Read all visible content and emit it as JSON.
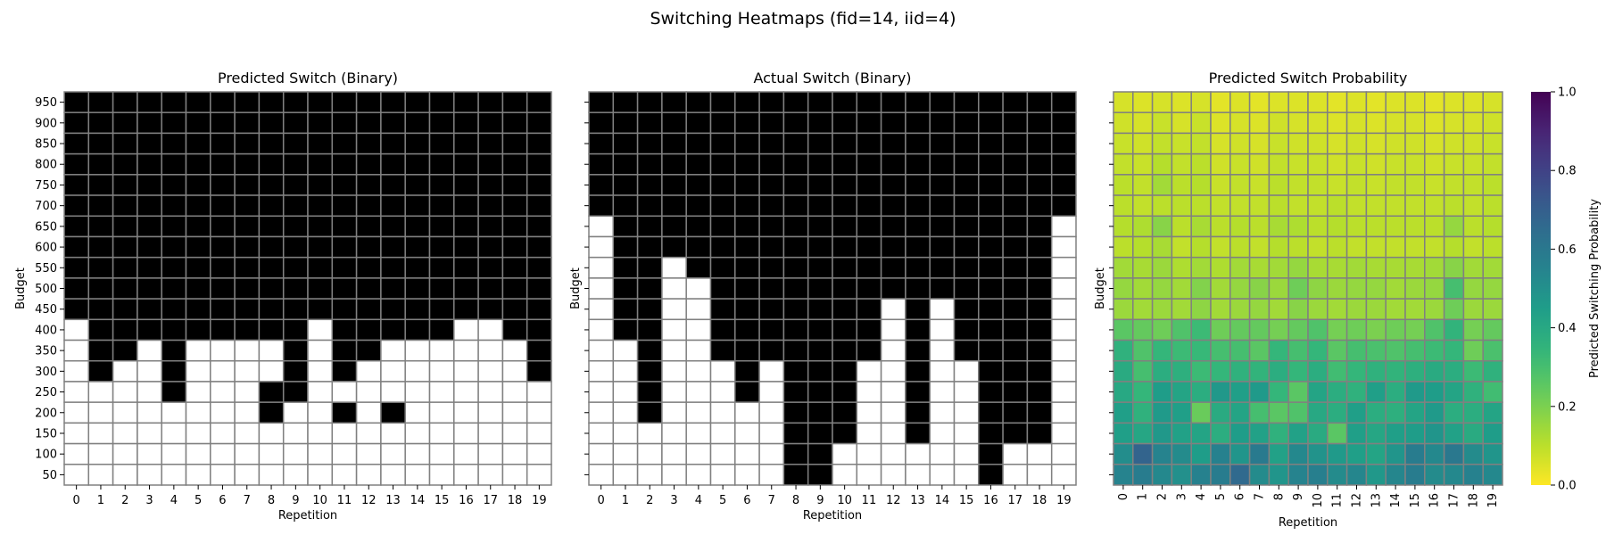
{
  "figure_title": "Switching Heatmaps (fid=14, iid=4)",
  "colorbar": {
    "label": "Predicted Switching Probability",
    "ticks": [
      "0.0",
      "0.2",
      "0.4",
      "0.6",
      "0.8",
      "1.0"
    ],
    "colormap": "viridis_r"
  },
  "chart_data": [
    {
      "type": "heatmap",
      "title": "Predicted Switch (Binary)",
      "xlabel": "Repetition",
      "ylabel": "Budget",
      "x": [
        0,
        1,
        2,
        3,
        4,
        5,
        6,
        7,
        8,
        9,
        10,
        11,
        12,
        13,
        14,
        15,
        16,
        17,
        18,
        19
      ],
      "y": [
        950,
        900,
        850,
        800,
        750,
        700,
        650,
        600,
        550,
        500,
        450,
        400,
        350,
        300,
        250,
        200,
        150,
        100,
        50
      ],
      "values": [
        [
          1,
          1,
          1,
          1,
          1,
          1,
          1,
          1,
          1,
          1,
          1,
          1,
          1,
          1,
          1,
          1,
          1,
          1,
          1,
          1
        ],
        [
          1,
          1,
          1,
          1,
          1,
          1,
          1,
          1,
          1,
          1,
          1,
          1,
          1,
          1,
          1,
          1,
          1,
          1,
          1,
          1
        ],
        [
          1,
          1,
          1,
          1,
          1,
          1,
          1,
          1,
          1,
          1,
          1,
          1,
          1,
          1,
          1,
          1,
          1,
          1,
          1,
          1
        ],
        [
          1,
          1,
          1,
          1,
          1,
          1,
          1,
          1,
          1,
          1,
          1,
          1,
          1,
          1,
          1,
          1,
          1,
          1,
          1,
          1
        ],
        [
          1,
          1,
          1,
          1,
          1,
          1,
          1,
          1,
          1,
          1,
          1,
          1,
          1,
          1,
          1,
          1,
          1,
          1,
          1,
          1
        ],
        [
          1,
          1,
          1,
          1,
          1,
          1,
          1,
          1,
          1,
          1,
          1,
          1,
          1,
          1,
          1,
          1,
          1,
          1,
          1,
          1
        ],
        [
          1,
          1,
          1,
          1,
          1,
          1,
          1,
          1,
          1,
          1,
          1,
          1,
          1,
          1,
          1,
          1,
          1,
          1,
          1,
          1
        ],
        [
          1,
          1,
          1,
          1,
          1,
          1,
          1,
          1,
          1,
          1,
          1,
          1,
          1,
          1,
          1,
          1,
          1,
          1,
          1,
          1
        ],
        [
          1,
          1,
          1,
          1,
          1,
          1,
          1,
          1,
          1,
          1,
          1,
          1,
          1,
          1,
          1,
          1,
          1,
          1,
          1,
          1
        ],
        [
          1,
          1,
          1,
          1,
          1,
          1,
          1,
          1,
          1,
          1,
          1,
          1,
          1,
          1,
          1,
          1,
          1,
          1,
          1,
          1
        ],
        [
          1,
          1,
          1,
          1,
          1,
          1,
          1,
          1,
          1,
          1,
          1,
          1,
          1,
          1,
          1,
          1,
          1,
          1,
          1,
          1
        ],
        [
          0,
          1,
          1,
          1,
          1,
          1,
          1,
          1,
          1,
          1,
          0,
          1,
          1,
          1,
          1,
          1,
          0,
          0,
          1,
          1
        ],
        [
          0,
          1,
          1,
          0,
          1,
          0,
          0,
          0,
          0,
          1,
          0,
          1,
          1,
          0,
          0,
          0,
          0,
          0,
          0,
          1
        ],
        [
          0,
          1,
          0,
          0,
          1,
          0,
          0,
          0,
          0,
          1,
          0,
          1,
          0,
          0,
          0,
          0,
          0,
          0,
          0,
          1
        ],
        [
          0,
          0,
          0,
          0,
          1,
          0,
          0,
          0,
          1,
          1,
          0,
          0,
          0,
          0,
          0,
          0,
          0,
          0,
          0,
          0
        ],
        [
          0,
          0,
          0,
          0,
          0,
          0,
          0,
          0,
          1,
          0,
          0,
          1,
          0,
          1,
          0,
          0,
          0,
          0,
          0,
          0
        ],
        [
          0,
          0,
          0,
          0,
          0,
          0,
          0,
          0,
          0,
          0,
          0,
          0,
          0,
          0,
          0,
          0,
          0,
          0,
          0,
          0
        ],
        [
          0,
          0,
          0,
          0,
          0,
          0,
          0,
          0,
          0,
          0,
          0,
          0,
          0,
          0,
          0,
          0,
          0,
          0,
          0,
          0
        ],
        [
          0,
          0,
          0,
          0,
          0,
          0,
          0,
          0,
          0,
          0,
          0,
          0,
          0,
          0,
          0,
          0,
          0,
          0,
          0,
          0
        ]
      ]
    },
    {
      "type": "heatmap",
      "title": "Actual Switch (Binary)",
      "xlabel": "Repetition",
      "ylabel": "Budget",
      "x": [
        0,
        1,
        2,
        3,
        4,
        5,
        6,
        7,
        8,
        9,
        10,
        11,
        12,
        13,
        14,
        15,
        16,
        17,
        18,
        19
      ],
      "y": [
        950,
        900,
        850,
        800,
        750,
        700,
        650,
        600,
        550,
        500,
        450,
        400,
        350,
        300,
        250,
        200,
        150,
        100,
        50
      ],
      "values": [
        [
          1,
          1,
          1,
          1,
          1,
          1,
          1,
          1,
          1,
          1,
          1,
          1,
          1,
          1,
          1,
          1,
          1,
          1,
          1,
          1
        ],
        [
          1,
          1,
          1,
          1,
          1,
          1,
          1,
          1,
          1,
          1,
          1,
          1,
          1,
          1,
          1,
          1,
          1,
          1,
          1,
          1
        ],
        [
          1,
          1,
          1,
          1,
          1,
          1,
          1,
          1,
          1,
          1,
          1,
          1,
          1,
          1,
          1,
          1,
          1,
          1,
          1,
          1
        ],
        [
          1,
          1,
          1,
          1,
          1,
          1,
          1,
          1,
          1,
          1,
          1,
          1,
          1,
          1,
          1,
          1,
          1,
          1,
          1,
          1
        ],
        [
          1,
          1,
          1,
          1,
          1,
          1,
          1,
          1,
          1,
          1,
          1,
          1,
          1,
          1,
          1,
          1,
          1,
          1,
          1,
          1
        ],
        [
          1,
          1,
          1,
          1,
          1,
          1,
          1,
          1,
          1,
          1,
          1,
          1,
          1,
          1,
          1,
          1,
          1,
          1,
          1,
          1
        ],
        [
          0,
          1,
          1,
          1,
          1,
          1,
          1,
          1,
          1,
          1,
          1,
          1,
          1,
          1,
          1,
          1,
          1,
          1,
          1,
          0
        ],
        [
          0,
          1,
          1,
          1,
          1,
          1,
          1,
          1,
          1,
          1,
          1,
          1,
          1,
          1,
          1,
          1,
          1,
          1,
          1,
          0
        ],
        [
          0,
          1,
          1,
          0,
          1,
          1,
          1,
          1,
          1,
          1,
          1,
          1,
          1,
          1,
          1,
          1,
          1,
          1,
          1,
          0
        ],
        [
          0,
          1,
          1,
          0,
          0,
          1,
          1,
          1,
          1,
          1,
          1,
          1,
          1,
          1,
          1,
          1,
          1,
          1,
          1,
          0
        ],
        [
          0,
          1,
          1,
          0,
          0,
          1,
          1,
          1,
          1,
          1,
          1,
          1,
          0,
          1,
          0,
          1,
          1,
          1,
          1,
          0
        ],
        [
          0,
          1,
          1,
          0,
          0,
          1,
          1,
          1,
          1,
          1,
          1,
          1,
          0,
          1,
          0,
          1,
          1,
          1,
          1,
          0
        ],
        [
          0,
          0,
          1,
          0,
          0,
          1,
          1,
          1,
          1,
          1,
          1,
          1,
          0,
          1,
          0,
          1,
          1,
          1,
          1,
          0
        ],
        [
          0,
          0,
          1,
          0,
          0,
          0,
          1,
          0,
          1,
          1,
          1,
          0,
          0,
          1,
          0,
          0,
          1,
          1,
          1,
          0
        ],
        [
          0,
          0,
          1,
          0,
          0,
          0,
          1,
          0,
          1,
          1,
          1,
          0,
          0,
          1,
          0,
          0,
          1,
          1,
          1,
          0
        ],
        [
          0,
          0,
          1,
          0,
          0,
          0,
          0,
          0,
          1,
          1,
          1,
          0,
          0,
          1,
          0,
          0,
          1,
          1,
          1,
          0
        ],
        [
          0,
          0,
          0,
          0,
          0,
          0,
          0,
          0,
          1,
          1,
          1,
          0,
          0,
          1,
          0,
          0,
          1,
          1,
          1,
          0
        ],
        [
          0,
          0,
          0,
          0,
          0,
          0,
          0,
          0,
          1,
          1,
          0,
          0,
          0,
          0,
          0,
          0,
          1,
          0,
          0,
          0
        ],
        [
          0,
          0,
          0,
          0,
          0,
          0,
          0,
          0,
          1,
          1,
          0,
          0,
          0,
          0,
          0,
          0,
          1,
          0,
          0,
          0
        ]
      ]
    },
    {
      "type": "heatmap",
      "title": "Predicted Switch Probability",
      "xlabel": "Repetition",
      "ylabel": "Budget",
      "x": [
        0,
        1,
        2,
        3,
        4,
        5,
        6,
        7,
        8,
        9,
        10,
        11,
        12,
        13,
        14,
        15,
        16,
        17,
        18,
        19
      ],
      "y": [
        950,
        900,
        850,
        800,
        750,
        700,
        650,
        600,
        550,
        500,
        450,
        400,
        350,
        300,
        250,
        200,
        150,
        100,
        50
      ],
      "zlim": [
        0,
        1
      ],
      "values": [
        [
          0.06,
          0.05,
          0.06,
          0.05,
          0.06,
          0.04,
          0.05,
          0.04,
          0.05,
          0.05,
          0.05,
          0.04,
          0.05,
          0.04,
          0.05,
          0.05,
          0.04,
          0.05,
          0.05,
          0.06
        ],
        [
          0.07,
          0.06,
          0.08,
          0.06,
          0.08,
          0.05,
          0.06,
          0.05,
          0.07,
          0.06,
          0.06,
          0.05,
          0.06,
          0.05,
          0.06,
          0.06,
          0.05,
          0.06,
          0.06,
          0.07
        ],
        [
          0.08,
          0.07,
          0.09,
          0.08,
          0.09,
          0.06,
          0.07,
          0.06,
          0.08,
          0.07,
          0.07,
          0.06,
          0.07,
          0.06,
          0.07,
          0.07,
          0.06,
          0.07,
          0.07,
          0.08
        ],
        [
          0.09,
          0.08,
          0.11,
          0.09,
          0.1,
          0.07,
          0.08,
          0.07,
          0.09,
          0.08,
          0.08,
          0.07,
          0.08,
          0.07,
          0.08,
          0.08,
          0.07,
          0.08,
          0.08,
          0.09
        ],
        [
          0.1,
          0.09,
          0.14,
          0.1,
          0.11,
          0.08,
          0.09,
          0.08,
          0.1,
          0.09,
          0.09,
          0.08,
          0.09,
          0.08,
          0.09,
          0.09,
          0.08,
          0.09,
          0.09,
          0.1
        ],
        [
          0.1,
          0.09,
          0.1,
          0.1,
          0.1,
          0.09,
          0.09,
          0.09,
          0.1,
          0.09,
          0.09,
          0.1,
          0.09,
          0.09,
          0.09,
          0.09,
          0.09,
          0.1,
          0.09,
          0.1
        ],
        [
          0.11,
          0.12,
          0.18,
          0.1,
          0.13,
          0.1,
          0.11,
          0.1,
          0.13,
          0.12,
          0.1,
          0.11,
          0.1,
          0.1,
          0.1,
          0.1,
          0.1,
          0.16,
          0.1,
          0.11
        ],
        [
          0.1,
          0.11,
          0.13,
          0.09,
          0.11,
          0.09,
          0.1,
          0.09,
          0.11,
          0.1,
          0.09,
          0.1,
          0.09,
          0.09,
          0.09,
          0.09,
          0.09,
          0.11,
          0.09,
          0.1
        ],
        [
          0.14,
          0.13,
          0.15,
          0.12,
          0.14,
          0.12,
          0.14,
          0.13,
          0.14,
          0.16,
          0.13,
          0.13,
          0.14,
          0.13,
          0.13,
          0.13,
          0.14,
          0.18,
          0.14,
          0.14
        ],
        [
          0.16,
          0.14,
          0.16,
          0.14,
          0.19,
          0.14,
          0.16,
          0.18,
          0.15,
          0.22,
          0.17,
          0.15,
          0.16,
          0.16,
          0.14,
          0.15,
          0.16,
          0.3,
          0.16,
          0.16
        ],
        [
          0.15,
          0.14,
          0.15,
          0.14,
          0.17,
          0.14,
          0.15,
          0.16,
          0.14,
          0.18,
          0.15,
          0.14,
          0.15,
          0.15,
          0.14,
          0.14,
          0.15,
          0.22,
          0.15,
          0.15
        ],
        [
          0.26,
          0.24,
          0.22,
          0.28,
          0.32,
          0.22,
          0.24,
          0.24,
          0.21,
          0.24,
          0.28,
          0.21,
          0.22,
          0.2,
          0.22,
          0.21,
          0.28,
          0.35,
          0.21,
          0.24
        ],
        [
          0.36,
          0.28,
          0.34,
          0.32,
          0.33,
          0.3,
          0.3,
          0.26,
          0.34,
          0.3,
          0.34,
          0.26,
          0.3,
          0.29,
          0.28,
          0.3,
          0.32,
          0.34,
          0.22,
          0.29
        ],
        [
          0.39,
          0.3,
          0.38,
          0.37,
          0.32,
          0.34,
          0.36,
          0.35,
          0.38,
          0.34,
          0.38,
          0.31,
          0.34,
          0.36,
          0.35,
          0.37,
          0.39,
          0.38,
          0.32,
          0.36
        ],
        [
          0.4,
          0.34,
          0.45,
          0.42,
          0.38,
          0.47,
          0.44,
          0.46,
          0.34,
          0.26,
          0.42,
          0.38,
          0.36,
          0.44,
          0.38,
          0.46,
          0.45,
          0.42,
          0.36,
          0.31
        ],
        [
          0.44,
          0.36,
          0.46,
          0.44,
          0.23,
          0.39,
          0.42,
          0.3,
          0.26,
          0.28,
          0.4,
          0.38,
          0.44,
          0.38,
          0.37,
          0.42,
          0.46,
          0.38,
          0.38,
          0.42
        ],
        [
          0.44,
          0.41,
          0.47,
          0.43,
          0.42,
          0.38,
          0.45,
          0.43,
          0.36,
          0.43,
          0.39,
          0.26,
          0.44,
          0.41,
          0.44,
          0.45,
          0.48,
          0.43,
          0.39,
          0.45
        ],
        [
          0.51,
          0.68,
          0.55,
          0.52,
          0.45,
          0.56,
          0.48,
          0.59,
          0.43,
          0.53,
          0.49,
          0.46,
          0.44,
          0.42,
          0.48,
          0.58,
          0.53,
          0.6,
          0.52,
          0.48
        ],
        [
          0.55,
          0.58,
          0.53,
          0.5,
          0.56,
          0.58,
          0.66,
          0.52,
          0.48,
          0.55,
          0.57,
          0.52,
          0.54,
          0.47,
          0.54,
          0.58,
          0.52,
          0.53,
          0.56,
          0.53
        ]
      ]
    }
  ]
}
